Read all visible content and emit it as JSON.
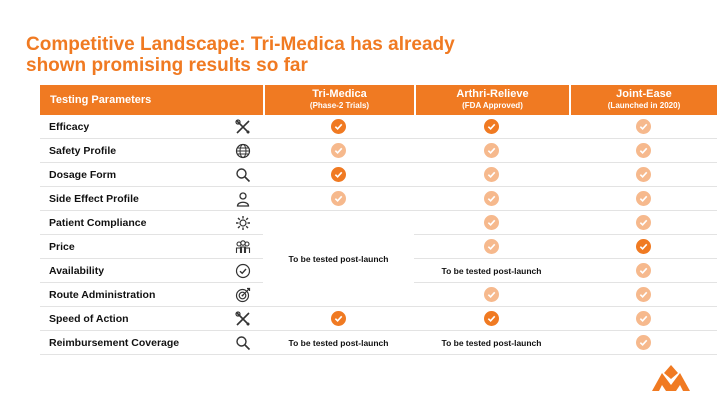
{
  "title": {
    "line1": "Competitive Landscape: Tri-Medica has already",
    "line2": "shown promising results so far"
  },
  "header": {
    "param": "Testing Parameters",
    "products": [
      {
        "name": "Tri-Medica",
        "sub": "(Phase-2 Trials)"
      },
      {
        "name": "Arthri-Relieve",
        "sub": "(FDA Approved)"
      },
      {
        "name": "Joint-Ease",
        "sub": "(Launched in 2020)"
      }
    ]
  },
  "rows": [
    {
      "label": "Efficacy",
      "icon": "tools-icon"
    },
    {
      "label": "Safety Profile",
      "icon": "globe-icon"
    },
    {
      "label": "Dosage Form",
      "icon": "magnifier-icon"
    },
    {
      "label": "Side Effect Profile",
      "icon": "person-icon"
    },
    {
      "label": "Patient Compliance",
      "icon": "gear-icon"
    },
    {
      "label": "Price",
      "icon": "team-icon"
    },
    {
      "label": "Availability",
      "icon": "check-circle-icon"
    },
    {
      "label": "Route Administration",
      "icon": "target-icon"
    },
    {
      "label": "Speed of Action",
      "icon": "tools-icon"
    },
    {
      "label": "Reimbursement Coverage",
      "icon": "magnifier-icon"
    }
  ],
  "notes": {
    "tri_medica_merged": "To be tested post-launch",
    "arthri_merged": "To be tested post-launch",
    "tri_medica_reimb": "To be tested post-launch",
    "arthri_reimb": "To be tested post-launch"
  },
  "colors": {
    "accent": "#f07a22",
    "accent_light": "#f6b98d"
  }
}
